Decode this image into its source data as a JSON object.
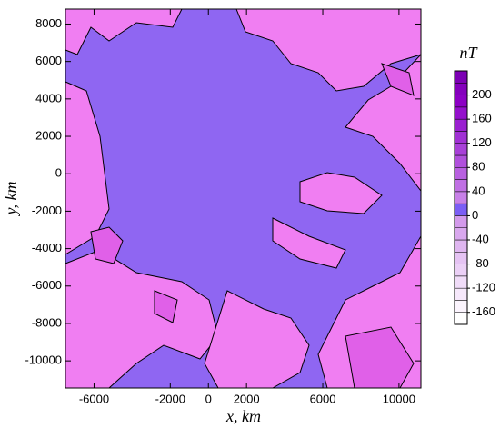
{
  "chart_data": {
    "type": "contour",
    "xlabel": "x, km",
    "ylabel": "y, km",
    "xlim": [
      -7500,
      11150
    ],
    "ylim": [
      -11450,
      8800
    ],
    "xticks": [
      -6000,
      -2000,
      0,
      2000,
      6000,
      10000
    ],
    "yticks": [
      8000,
      6000,
      4000,
      2000,
      0,
      -2000,
      -4000,
      -6000,
      -8000,
      -10000
    ],
    "colorbar": {
      "title": "nT",
      "lim": [
        -180,
        240
      ],
      "ticks": [
        200,
        160,
        120,
        80,
        40,
        0,
        -40,
        -80,
        -120,
        -160
      ],
      "colors": [
        "#ffffff",
        "#fbf4fd",
        "#f6e8fb",
        "#f0dcf8",
        "#ebd0f6",
        "#e5c3f3",
        "#dfb6f0",
        "#d9a8ee",
        "#d39aeb",
        "#7b5ef5",
        "#c880e8",
        "#c070e4",
        "#b860e0",
        "#b050dc",
        "#a840d8",
        "#a030d4",
        "#9a20d0",
        "#9410cc",
        "#8c00c4",
        "#8400bc",
        "#7c00b4"
      ]
    }
  }
}
